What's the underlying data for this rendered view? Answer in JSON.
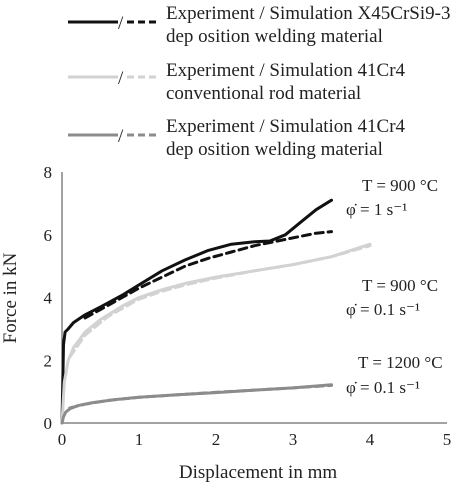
{
  "chart_data": {
    "type": "line",
    "xlabel": "Displacement in mm",
    "ylabel": "Force in kN",
    "xlim": [
      0,
      5
    ],
    "ylim": [
      0,
      8
    ],
    "xticks": [
      "0",
      "1",
      "2",
      "3",
      "4",
      "5"
    ],
    "yticks": [
      "0",
      "2",
      "4",
      "6",
      "8"
    ],
    "grid": false,
    "legend_placement": "top",
    "legend": [
      {
        "separator": "/",
        "line1": "Experiment / Simulation X45CrSi9-3",
        "line2": "dep osition welding material",
        "color": "#111111"
      },
      {
        "separator": "/",
        "line1": "Experiment / Simulation 41Cr4",
        "line2": "conventional rod material",
        "color": "#d2d2d2"
      },
      {
        "separator": "/",
        "line1": "Experiment / Simulation 41Cr4",
        "line2": "dep osition welding material",
        "color": "#8c8c8c"
      }
    ],
    "annotations": [
      {
        "line1": "T = 900 °C",
        "line2": "φ̇ = 1 s⁻¹",
        "at": [
          3.0,
          6.8
        ]
      },
      {
        "line1": "T = 900 °C",
        "line2": "φ̇ = 0.1 s⁻¹",
        "at": [
          3.9,
          4.3
        ]
      },
      {
        "line1": "T = 1200 °C",
        "line2": "φ̇ = 0.1 s⁻¹",
        "at": [
          3.9,
          1.2
        ]
      }
    ],
    "series": [
      {
        "group": 0,
        "style": "solid",
        "color": "#111111",
        "x": [
          0,
          0.02,
          0.04,
          0.08,
          0.15,
          0.3,
          0.5,
          0.8,
          1.0,
          1.3,
          1.6,
          1.9,
          2.2,
          2.5,
          2.7,
          2.9,
          3.1,
          3.3,
          3.5
        ],
        "y": [
          0,
          2.5,
          2.9,
          3.0,
          3.2,
          3.45,
          3.7,
          4.1,
          4.4,
          4.85,
          5.2,
          5.5,
          5.7,
          5.78,
          5.8,
          6.0,
          6.4,
          6.8,
          7.1
        ]
      },
      {
        "group": 0,
        "style": "dashed",
        "color": "#111111",
        "x": [
          0.3,
          0.6,
          1.0,
          1.3,
          1.6,
          1.9,
          2.2,
          2.5,
          2.8,
          3.1,
          3.3,
          3.5
        ],
        "y": [
          3.35,
          3.75,
          4.3,
          4.65,
          5.0,
          5.25,
          5.45,
          5.65,
          5.8,
          5.95,
          6.05,
          6.1
        ]
      },
      {
        "group": 1,
        "style": "solid",
        "color": "#d2d2d2",
        "x": [
          0,
          0.03,
          0.08,
          0.15,
          0.3,
          0.5,
          0.8,
          1.0,
          1.3,
          1.6,
          2.0,
          2.5,
          3.0,
          3.5,
          4.0
        ],
        "y": [
          0,
          1.3,
          2.0,
          2.4,
          2.9,
          3.3,
          3.75,
          4.0,
          4.25,
          4.45,
          4.65,
          4.85,
          5.05,
          5.3,
          5.7
        ]
      },
      {
        "group": 1,
        "style": "dashed",
        "color": "#d2d2d2",
        "x": [
          0.1,
          0.3,
          0.6,
          1.0,
          1.3,
          1.6,
          2.0,
          2.5,
          3.0,
          3.5,
          4.0
        ],
        "y": [
          2.1,
          2.8,
          3.4,
          3.95,
          4.2,
          4.4,
          4.62,
          4.85,
          5.05,
          5.3,
          5.65
        ]
      },
      {
        "group": 2,
        "style": "solid",
        "color": "#8c8c8c",
        "x": [
          0,
          0.02,
          0.05,
          0.1,
          0.2,
          0.4,
          0.7,
          1.0,
          1.5,
          2.0,
          2.5,
          3.0,
          3.5
        ],
        "y": [
          0,
          0.2,
          0.35,
          0.45,
          0.55,
          0.65,
          0.75,
          0.82,
          0.9,
          0.97,
          1.05,
          1.12,
          1.22
        ]
      },
      {
        "group": 2,
        "style": "dashed",
        "color": "#8c8c8c",
        "x": [
          0.1,
          0.3,
          0.6,
          1.0,
          1.5,
          2.0,
          2.5,
          3.0,
          3.5
        ],
        "y": [
          0.48,
          0.6,
          0.72,
          0.82,
          0.9,
          0.98,
          1.05,
          1.12,
          1.2
        ]
      }
    ]
  }
}
